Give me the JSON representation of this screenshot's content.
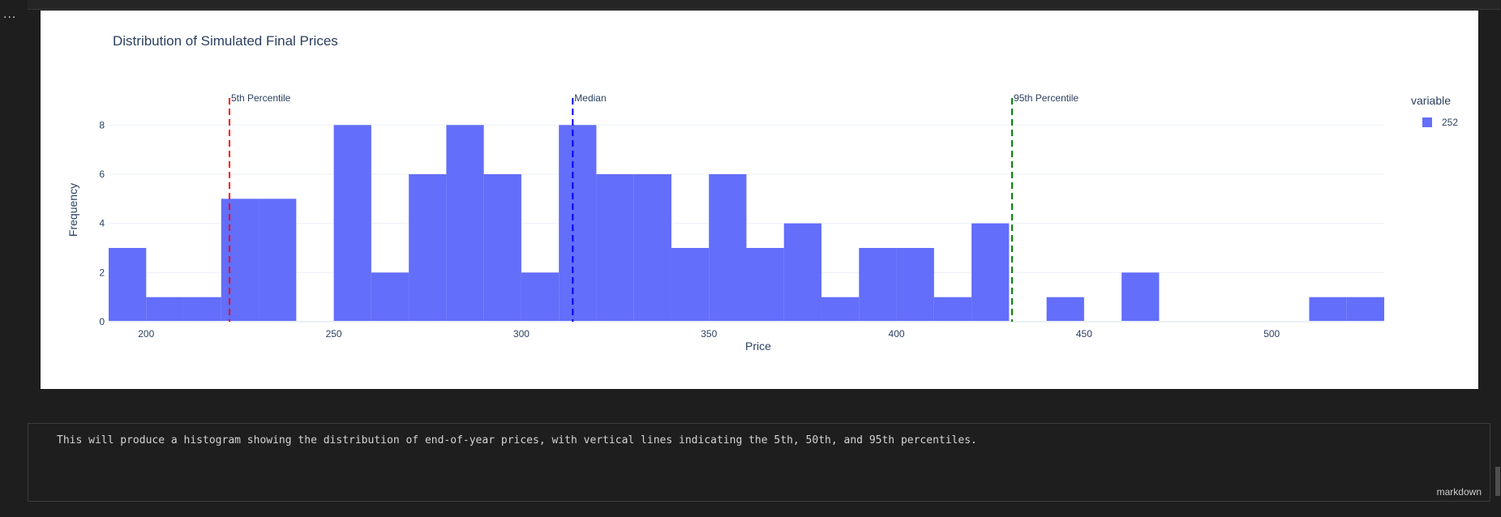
{
  "cell_menu_glyph": "...",
  "markdown_cell": {
    "text": "This will produce a histogram showing the distribution of end-of-year prices, with vertical lines indicating the 5th, 50th, and 95th percentiles.",
    "language": "markdown"
  },
  "chart_data": {
    "type": "bar",
    "title": "Distribution of Simulated Final Prices",
    "xlabel": "Price",
    "ylabel": "Frequency",
    "xlim": [
      190,
      530
    ],
    "ylim": [
      0,
      8.9
    ],
    "xticks": [
      200,
      250,
      300,
      350,
      400,
      450,
      500
    ],
    "yticks": [
      0,
      2,
      4,
      6,
      8
    ],
    "grid": true,
    "bin_width": 10,
    "bar_color": "#636efa",
    "legend": {
      "title": "variable",
      "position": "top-right",
      "entries": [
        "252"
      ]
    },
    "series": [
      {
        "name": "252",
        "bins": [
          {
            "x": 190,
            "count": 3
          },
          {
            "x": 200,
            "count": 1
          },
          {
            "x": 210,
            "count": 1
          },
          {
            "x": 220,
            "count": 5
          },
          {
            "x": 230,
            "count": 5
          },
          {
            "x": 250,
            "count": 8
          },
          {
            "x": 260,
            "count": 2
          },
          {
            "x": 270,
            "count": 6
          },
          {
            "x": 280,
            "count": 8
          },
          {
            "x": 290,
            "count": 6
          },
          {
            "x": 300,
            "count": 2
          },
          {
            "x": 310,
            "count": 8
          },
          {
            "x": 320,
            "count": 6
          },
          {
            "x": 330,
            "count": 6
          },
          {
            "x": 340,
            "count": 3
          },
          {
            "x": 350,
            "count": 6
          },
          {
            "x": 360,
            "count": 3
          },
          {
            "x": 370,
            "count": 4
          },
          {
            "x": 380,
            "count": 1
          },
          {
            "x": 390,
            "count": 3
          },
          {
            "x": 400,
            "count": 3
          },
          {
            "x": 410,
            "count": 1
          },
          {
            "x": 420,
            "count": 4
          },
          {
            "x": 440,
            "count": 1
          },
          {
            "x": 460,
            "count": 2
          },
          {
            "x": 510,
            "count": 1
          },
          {
            "x": 520,
            "count": 1
          }
        ]
      }
    ],
    "vlines": [
      {
        "x": 222.2,
        "label": "5th Percentile",
        "color": "#ff0000"
      },
      {
        "x": 313.7,
        "label": "Median",
        "color": "#0000ff"
      },
      {
        "x": 430.8,
        "label": "95th Percentile",
        "color": "#008000"
      }
    ]
  }
}
